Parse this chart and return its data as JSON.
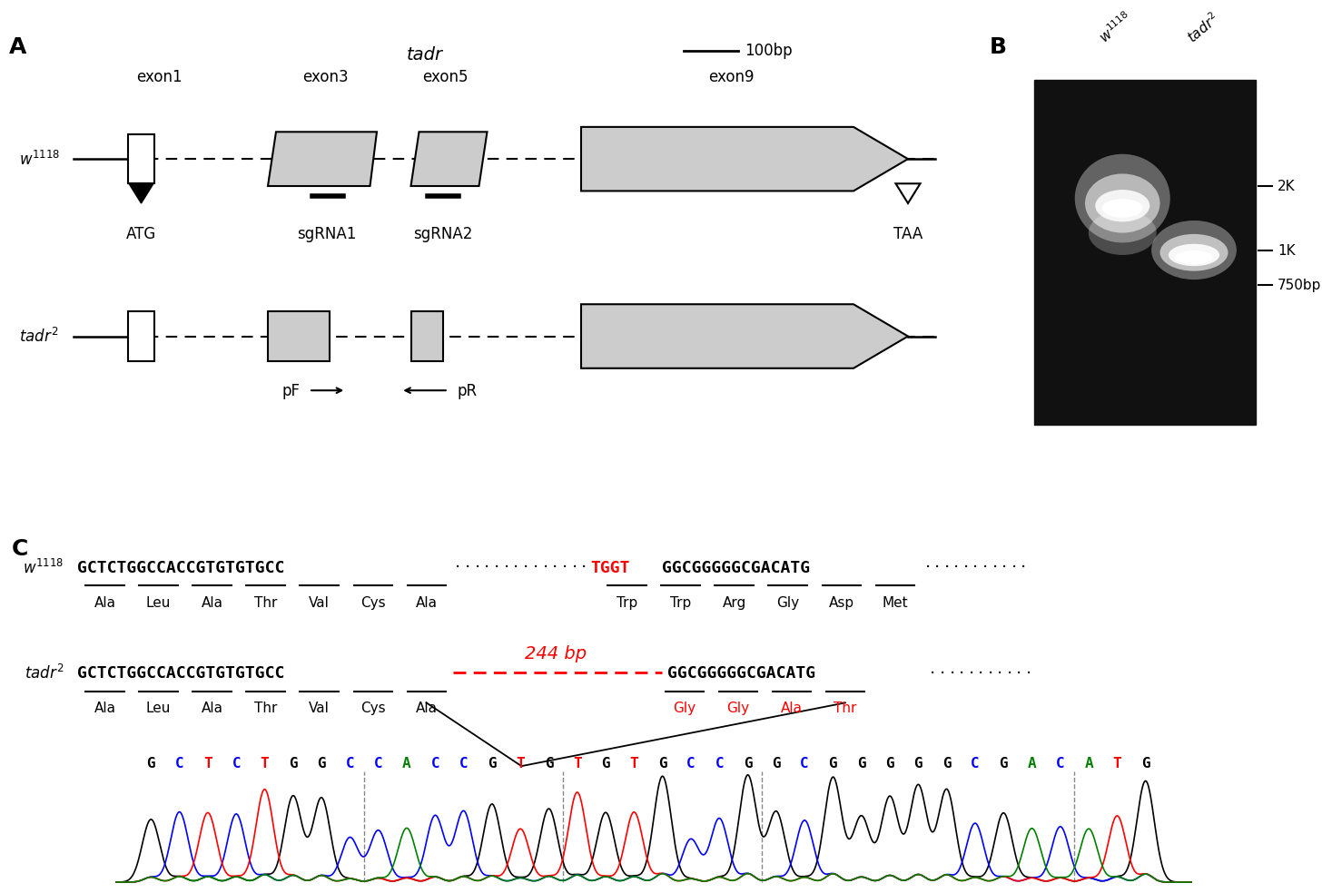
{
  "panel_A": {
    "title_tadr": "tadr",
    "scale_bar": "100bp",
    "exon_labels": [
      "exon1",
      "exon3",
      "exon5",
      "exon9"
    ],
    "atg_label": "ATG",
    "taa_label": "TAA",
    "sgrna1_label": "sgRNA1",
    "sgrna2_label": "sgRNA2",
    "pF_label": "pF",
    "pR_label": "pR",
    "w1118_label": "$w^{1118}$",
    "tadr2_label": "$tadr^2$"
  },
  "panel_B": {
    "w1118_label": "$w^{1118}$",
    "tadr2_label": "$tadr^2$",
    "size_labels": [
      "2K",
      "1K",
      "750bp"
    ]
  },
  "panel_C": {
    "w1118_label": "$w^{1118}$",
    "tadr2_label": "$tadr^2$",
    "w1118_seq_left": "GCTCTGGCCACCGTGTGTGCC",
    "w1118_seq_mid_red": "TGGT",
    "w1118_seq_right": "GGCGGGGGCGACATG",
    "tadr2_seq_left": "GCTCTGGCCACCGTGTGTGCC",
    "tadr2_seq_right": "GGCGGGGGCGACATG",
    "deletion_label": "244 bp",
    "aa_w1118_left": [
      "Ala",
      "Leu",
      "Ala",
      "Thr",
      "Val",
      "Cys",
      "Ala"
    ],
    "aa_w1118_right": [
      "Trp",
      "Trp",
      "Arg",
      "Gly",
      "Asp",
      "Met"
    ],
    "aa_tadr2_left": [
      "Ala",
      "Leu",
      "Ala",
      "Thr",
      "Val",
      "Cys",
      "Ala"
    ],
    "aa_tadr2_right_red": [
      "Gly",
      "Gly",
      "Ala",
      "Thr"
    ],
    "chromatogram_seq": "GCTCTGGCCACCGTGTGTGCCGGCGGGGGCGACATG",
    "chrom_base_colors": {
      "G": "#000000",
      "C": "#0000ff",
      "T": "#ff0000",
      "A": "#008000"
    },
    "chrom_dashed_indices": [
      7,
      14,
      21,
      32
    ]
  },
  "bg": "#ffffff"
}
